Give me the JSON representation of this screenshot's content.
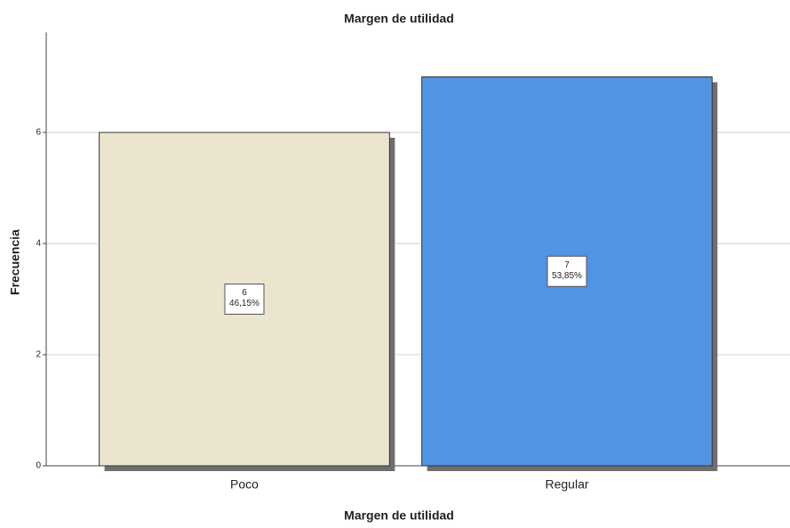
{
  "chart_data": {
    "type": "bar",
    "title": "Margen de utilidad",
    "x_label": "Margen de utilidad",
    "y_label": "Frecuencia",
    "categories": [
      "Poco",
      "Regular"
    ],
    "values": [
      6,
      7
    ],
    "percent_labels": [
      "46,15%",
      "53,85%"
    ],
    "colors": [
      "#ebe4cf",
      "#5094e3"
    ],
    "ylim": [
      0,
      7.8
    ],
    "yticks": [
      0,
      2,
      4,
      6
    ],
    "grid": true
  }
}
